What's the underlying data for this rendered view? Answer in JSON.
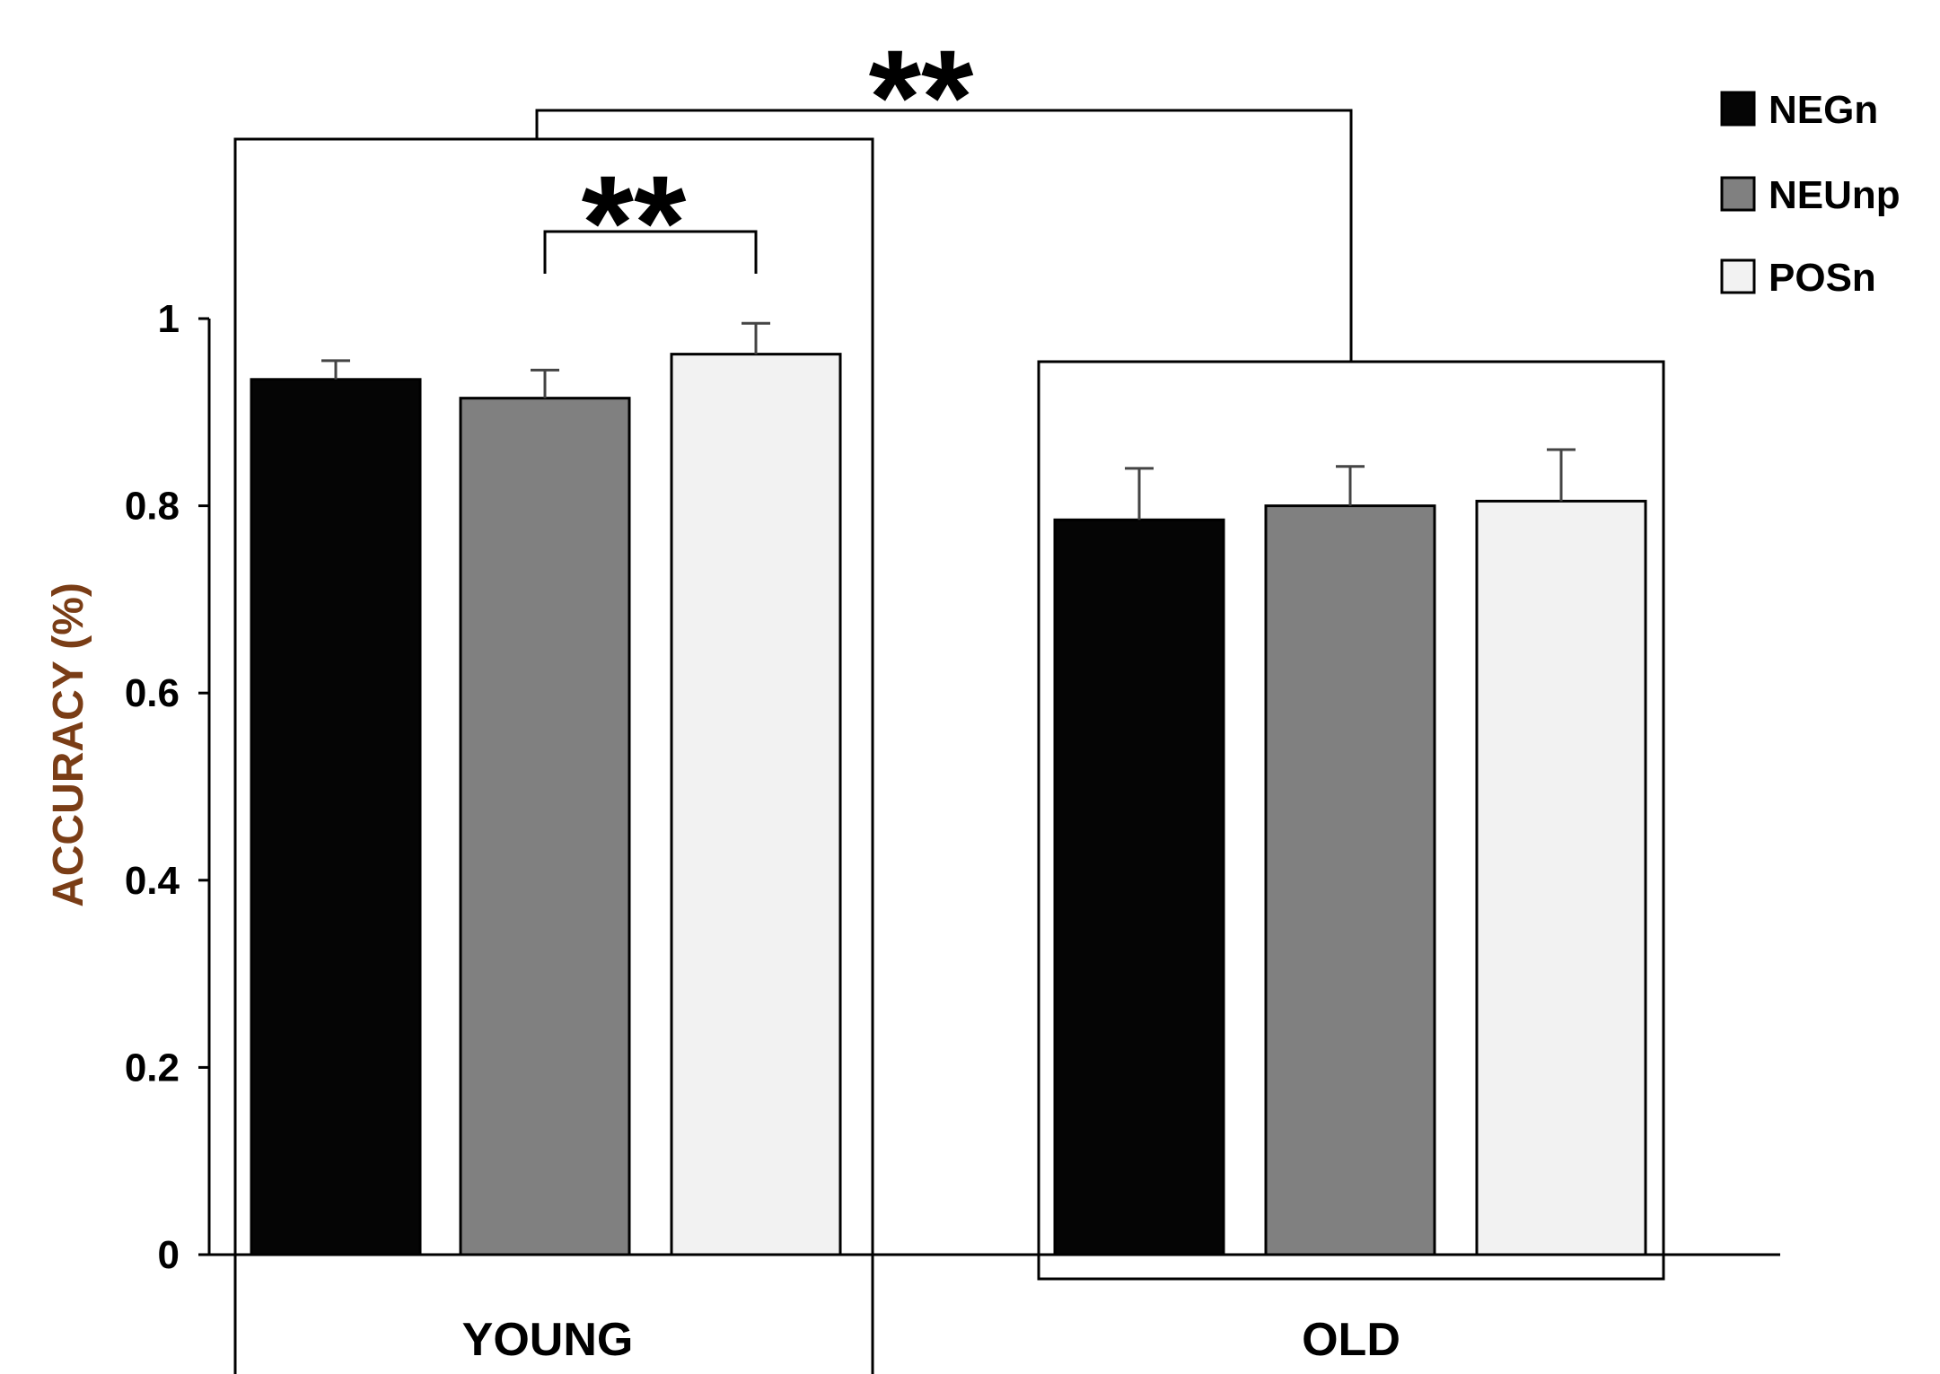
{
  "chart_data": {
    "type": "bar",
    "categories": [
      "YOUNG",
      "OLD"
    ],
    "series": [
      {
        "name": "NEGn",
        "values": [
          0.935,
          0.785
        ],
        "errors": [
          0.02,
          0.055
        ]
      },
      {
        "name": "NEUnp",
        "values": [
          0.915,
          0.8
        ],
        "errors": [
          0.03,
          0.042
        ]
      },
      {
        "name": "POSn",
        "values": [
          0.962,
          0.805
        ],
        "errors": [
          0.033,
          0.055
        ]
      }
    ],
    "ylabel": "ACCURACY (%)",
    "ylim": [
      0,
      1
    ],
    "yticks": [
      "0",
      "0.2",
      "0.4",
      "0.6",
      "0.8",
      "1"
    ],
    "legend_position": "top-right",
    "annotations": [
      {
        "text": "**",
        "between": "YOUNG NEUnp vs YOUNG POSn"
      },
      {
        "text": "**",
        "between": "YOUNG vs OLD"
      }
    ]
  },
  "colors": {
    "NEGn": "#050505",
    "NEUnp": "#808080",
    "POSn": "#f2f2f2",
    "axis": "#000000",
    "ylabel": "#7a3d16"
  }
}
